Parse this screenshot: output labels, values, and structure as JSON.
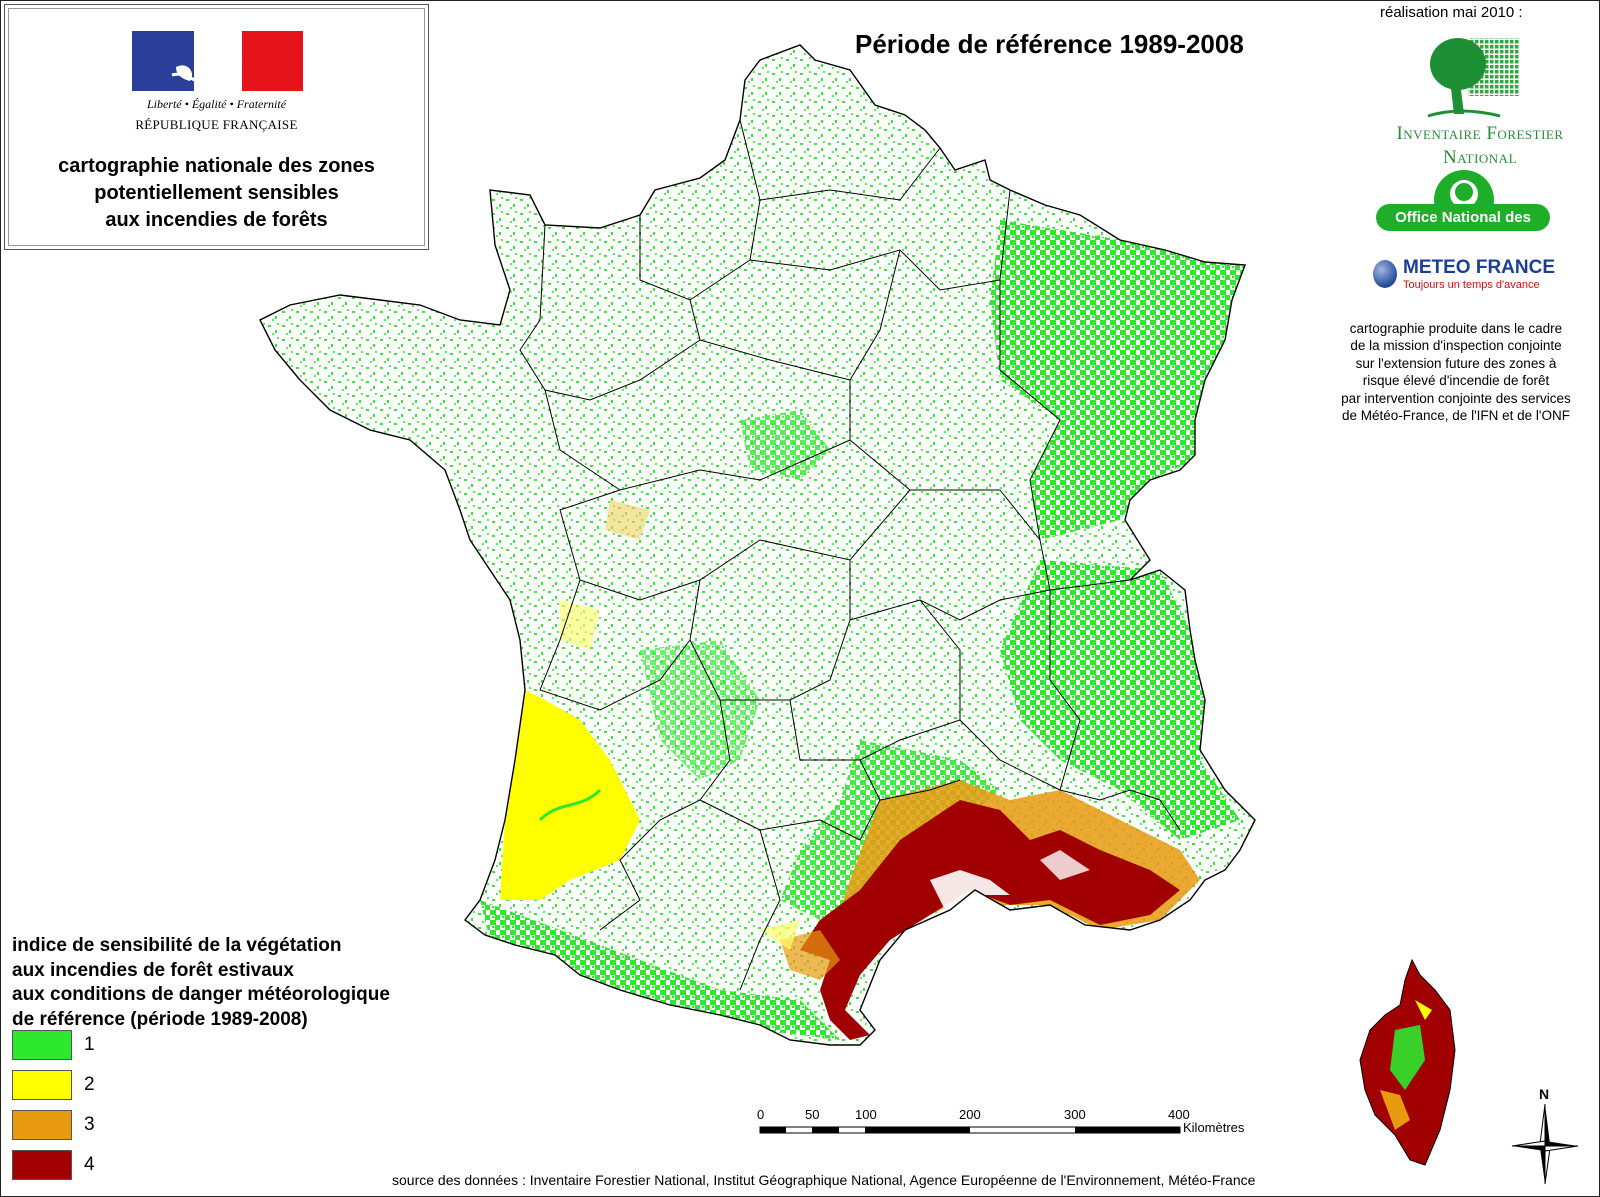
{
  "header": {
    "motto": "Liberté • Égalité • Fraternité",
    "republic": "RÉPUBLIQUE FRANÇAISE",
    "title_lines": [
      "cartographie nationale des zones",
      "potentiellement sensibles",
      "aux incendies de forêts"
    ]
  },
  "map_title": "Période de référence 1989-2008",
  "realisation": "réalisation mai 2010 :",
  "logos": {
    "ifn_lines": [
      "Inventaire Forestier",
      "National"
    ],
    "onf": "Office National des Forêts",
    "meteo_name": "METEO FRANCE",
    "meteo_slogan": "Toujours un temps d'avance"
  },
  "description_lines": [
    "cartographie produite dans le cadre",
    "de la mission d'inspection conjointe",
    "sur l'extension future des zones à",
    "risque élevé d'incendie de forêt",
    "par intervention conjointe des services",
    "de Météo-France, de l'IFN et de l'ONF"
  ],
  "legend": {
    "title_lines": [
      "indice de sensibilité de la végétation",
      "aux incendies de forêt estivaux",
      "aux conditions de danger météorologique",
      "de référence (période 1989-2008)"
    ],
    "items": [
      {
        "label": "1",
        "color": "#2ee82e"
      },
      {
        "label": "2",
        "color": "#ffff00"
      },
      {
        "label": "3",
        "color": "#e89a10"
      },
      {
        "label": "4",
        "color": "#a00000"
      }
    ]
  },
  "scale": {
    "ticks": [
      "0",
      "50",
      "100",
      "200",
      "300",
      "400"
    ],
    "unit": "Kilomètres"
  },
  "north_label": "N",
  "source": "source des données : Inventaire Forestier National, Institut Géographique National,  Agence Européenne de l'Environnement, Météo-France"
}
